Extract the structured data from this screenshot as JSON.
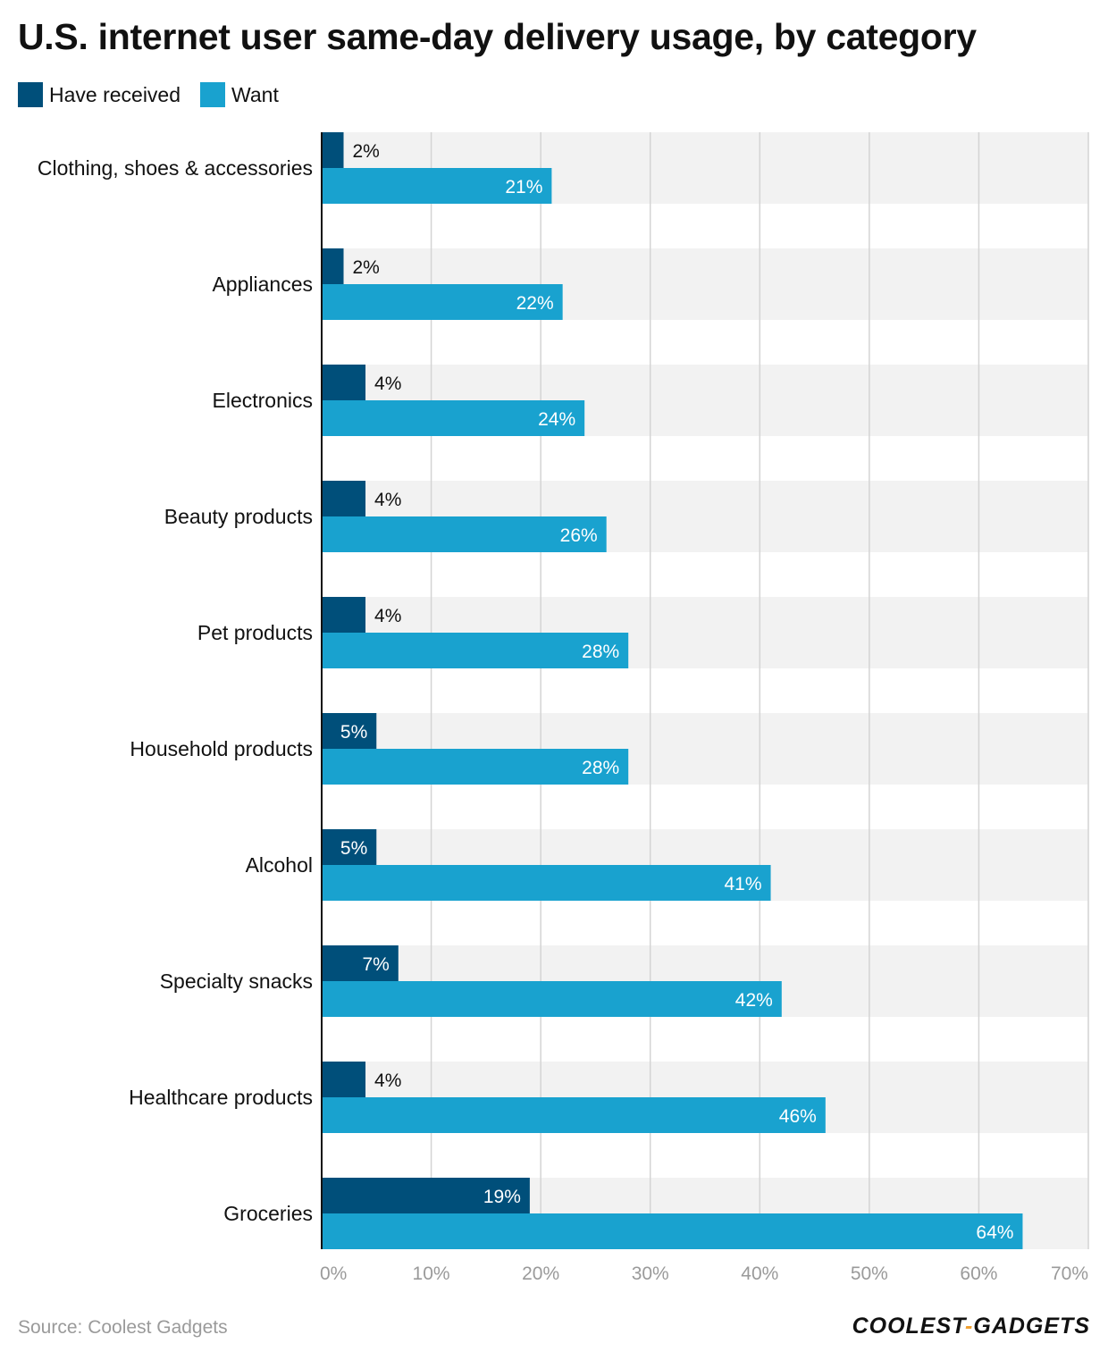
{
  "chart_data": {
    "type": "bar",
    "orientation": "horizontal",
    "title": "U.S. internet user same-day delivery usage, by category",
    "categories": [
      "Clothing, shoes & accessories",
      "Appliances",
      "Electronics",
      "Beauty products",
      "Pet products",
      "Household products",
      "Alcohol",
      "Specialty snacks",
      "Healthcare products",
      "Groceries"
    ],
    "series": [
      {
        "name": "Have received",
        "color": "#004f7a",
        "values": [
          2,
          2,
          4,
          4,
          4,
          5,
          5,
          7,
          4,
          19
        ]
      },
      {
        "name": "Want",
        "color": "#19a2cf",
        "values": [
          21,
          22,
          24,
          26,
          28,
          28,
          41,
          42,
          46,
          64
        ]
      }
    ],
    "xlim": [
      0,
      70
    ],
    "xticks": [
      0,
      10,
      20,
      30,
      40,
      50,
      60,
      70
    ],
    "tick_suffix": "%",
    "grid": true,
    "legend_position": "top-left"
  },
  "footer": {
    "source": "Source: Coolest Gadgets",
    "brand_left": "COOLEST",
    "brand_sep": "-",
    "brand_right": "GADGETS"
  }
}
